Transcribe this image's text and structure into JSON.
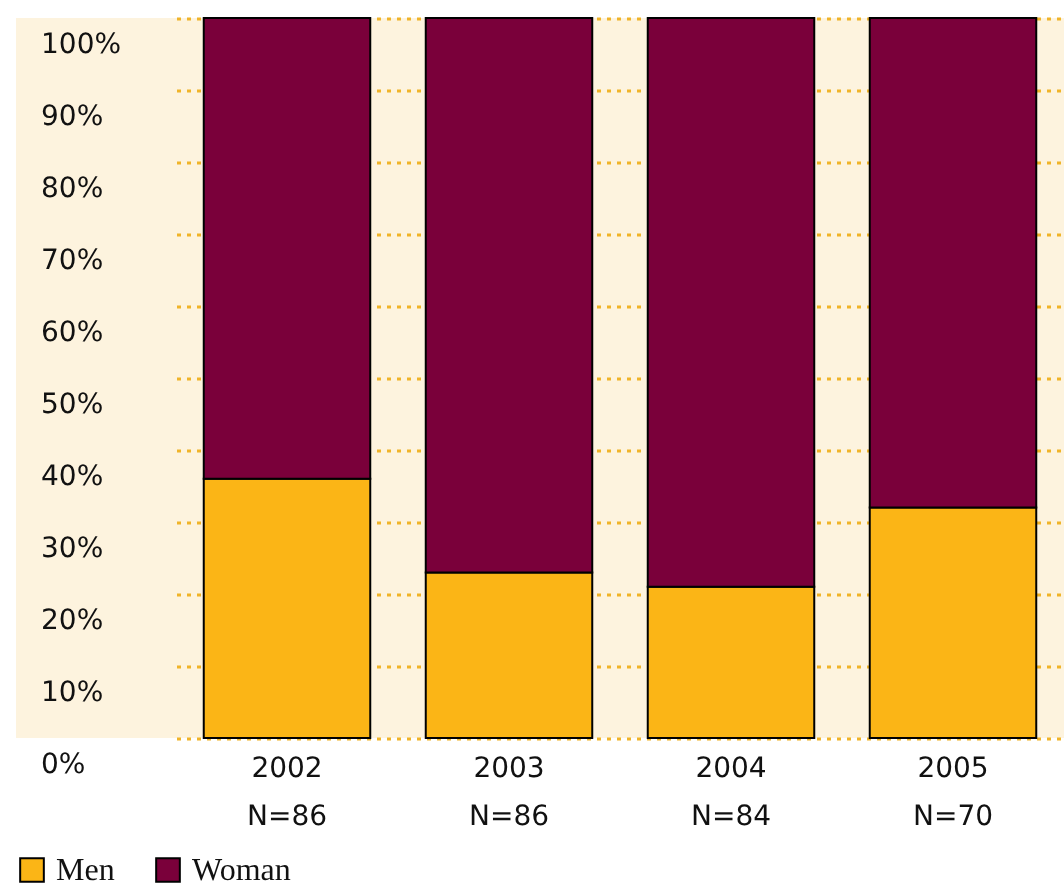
{
  "chart_data": {
    "type": "bar",
    "stacked": true,
    "categories": [
      "2002\nN=86",
      "2003\nN=86",
      "2004\nN=84",
      "2005\nN=70"
    ],
    "series": [
      {
        "name": "Men",
        "color": "#fbb516",
        "values": [
          36,
          23,
          21,
          32
        ]
      },
      {
        "name": "Woman",
        "color": "#7a003a",
        "values": [
          64,
          77,
          79,
          68
        ]
      }
    ],
    "ylim": [
      0,
      100
    ],
    "yticks": [
      {
        "value": 0,
        "label": "0%"
      },
      {
        "value": 10,
        "label": "10%"
      },
      {
        "value": 20,
        "label": "20%"
      },
      {
        "value": 30,
        "label": "30%"
      },
      {
        "value": 40,
        "label": "40%"
      },
      {
        "value": 50,
        "label": "50%"
      },
      {
        "value": 60,
        "label": "60%"
      },
      {
        "value": 70,
        "label": "70%"
      },
      {
        "value": 80,
        "label": "80%"
      },
      {
        "value": 90,
        "label": "90%"
      },
      {
        "value": 100,
        "label": "100%"
      }
    ],
    "grid": "y",
    "legend": "bottom left"
  }
}
